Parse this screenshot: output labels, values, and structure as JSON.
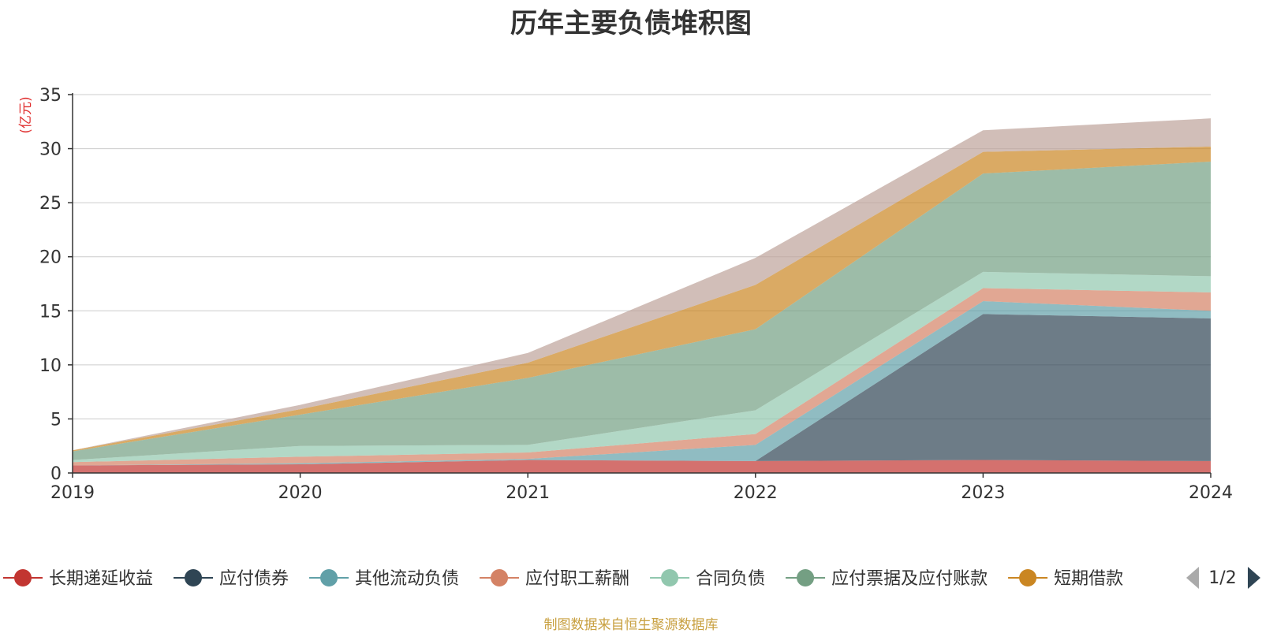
{
  "footer": "制图数据来自恒生聚源数据库",
  "legend_page": "1/2",
  "chart_data": {
    "type": "area",
    "stacked": true,
    "title": "历年主要负债堆积图",
    "ylabel": "(亿元)",
    "xlabel": "",
    "ylim": [
      0,
      35
    ],
    "yticks": [
      0,
      5,
      10,
      15,
      20,
      25,
      30,
      35
    ],
    "grid": true,
    "legend_position": "bottom",
    "categories": [
      "2019",
      "2020",
      "2021",
      "2022",
      "2023",
      "2024"
    ],
    "series": [
      {
        "name": "长期递延收益",
        "color": "#c23531",
        "values": [
          0.7,
          0.8,
          1.2,
          1.1,
          1.2,
          1.1
        ]
      },
      {
        "name": "应付债券",
        "color": "#2f4554",
        "values": [
          0.0,
          0.0,
          0.0,
          0.0,
          13.5,
          13.2
        ]
      },
      {
        "name": "其他流动负债",
        "color": "#61a0a8",
        "values": [
          0.0,
          0.1,
          0.1,
          1.5,
          1.2,
          0.7
        ]
      },
      {
        "name": "应付职工薪酬",
        "color": "#d48265",
        "values": [
          0.3,
          0.6,
          0.6,
          1.0,
          1.2,
          1.7
        ]
      },
      {
        "name": "合同负债",
        "color": "#91c7ae",
        "values": [
          0.2,
          1.0,
          0.7,
          2.2,
          1.5,
          1.5
        ]
      },
      {
        "name": "应付票据及应付账款",
        "color": "#749f83",
        "values": [
          0.8,
          2.9,
          6.2,
          7.5,
          9.1,
          10.6
        ]
      },
      {
        "name": "短期借款",
        "color": "#ca8622",
        "values": [
          0.1,
          0.5,
          1.4,
          4.1,
          2.0,
          1.4
        ]
      },
      {
        "name": "",
        "color": "#bda29a",
        "values": [
          0.0,
          0.4,
          0.9,
          2.5,
          2.0,
          2.6
        ]
      }
    ]
  }
}
